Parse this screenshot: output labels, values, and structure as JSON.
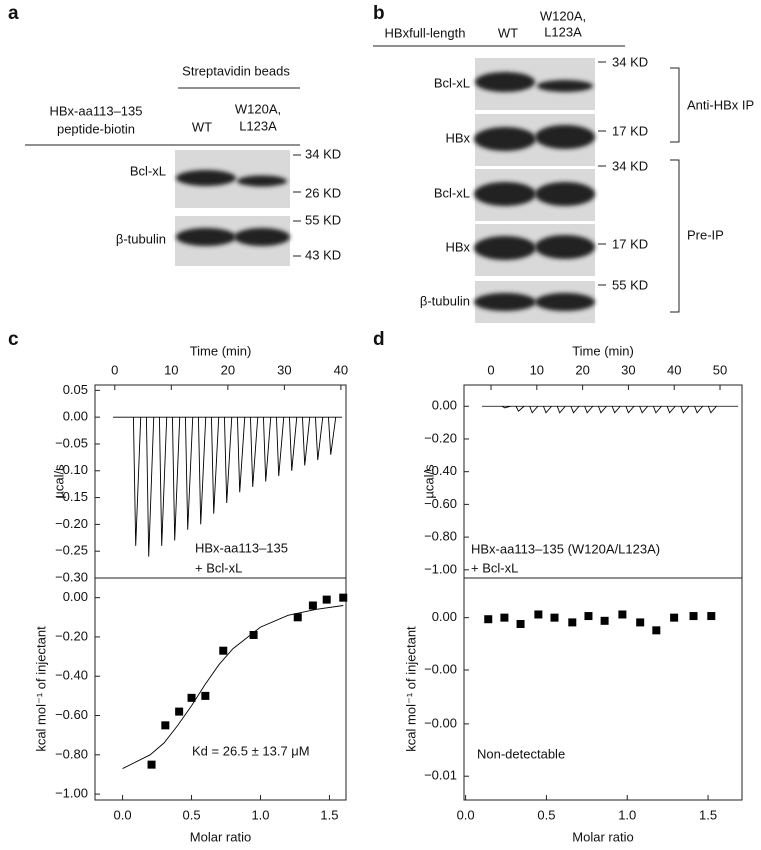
{
  "letters": [
    "a",
    "b",
    "c",
    "d"
  ],
  "panel_a": {
    "header": "Streptavidin beads",
    "sample_label": [
      "HBx-aa113–135",
      "peptide-biotin"
    ],
    "lanes": [
      [
        "WT"
      ],
      [
        "W120A,",
        "L123A"
      ]
    ],
    "rows": [
      {
        "label": "Bcl-xL",
        "markers": [
          "34 KD",
          "26 KD"
        ]
      },
      {
        "label": "β-tubulin",
        "markers": [
          "55 KD",
          "43 KD"
        ]
      }
    ]
  },
  "panel_b": {
    "sample_label": "HBxfull-length",
    "lanes": [
      [
        "WT"
      ],
      [
        "W120A,",
        "L123A"
      ]
    ],
    "rows": [
      "Bcl-xL",
      "HBx",
      "Bcl-xL",
      "HBx",
      "β-tubulin"
    ],
    "markers": [
      "34 KD",
      "17 KD",
      "34 KD",
      "17 KD",
      "55 KD"
    ],
    "groups": [
      "Anti-HBx IP",
      "Pre-IP"
    ]
  },
  "chart_data": [
    {
      "type": "thermogram",
      "xlabel": "Time (min)",
      "ylabel": "µcal/s",
      "color": "#000000",
      "xlim": [
        -3.5,
        40.9
      ],
      "xticks": [
        0,
        10,
        20,
        30,
        40
      ],
      "ylim": [
        -0.3,
        0.06
      ],
      "yticks": [
        0.05,
        {
          "value": 0,
          "label": "0.00"
        },
        {
          "value": -0.05,
          "label": "−0.05"
        },
        {
          "value": -0.1,
          "label": "−0.10"
        },
        {
          "value": -0.15,
          "label": "−0.15"
        },
        {
          "value": -0.2,
          "label": "−0.20"
        },
        {
          "value": -0.25,
          "label": "−0.25"
        },
        {
          "value": -0.3,
          "label": "−0.30"
        }
      ],
      "x": [
        3.7,
        6.0,
        8.3,
        10.6,
        12.9,
        15.2,
        17.5,
        19.8,
        22.1,
        24.4,
        26.7,
        29.0,
        31.3,
        33.6,
        35.9,
        38.2
      ],
      "values": [
        -0.24,
        -0.26,
        -0.24,
        -0.23,
        -0.21,
        -0.2,
        -0.18,
        -0.16,
        -0.14,
        -0.13,
        -0.12,
        -0.11,
        -0.1,
        -0.09,
        -0.08,
        -0.07
      ],
      "annotations": [
        "HBx-aa113–135",
        "+ Bcl-xL"
      ]
    },
    {
      "type": "scatter",
      "xlabel": "Molar ratio",
      "ylabel": "kcal mol⁻¹ of injectant",
      "color": "#000000",
      "xlim": [
        -0.2,
        1.62
      ],
      "xticks": [
        {
          "value": 0,
          "label": "0.0"
        },
        0.5,
        {
          "value": 1,
          "label": "1.0"
        },
        1.5
      ],
      "ylim": [
        -1.03,
        0.1
      ],
      "yticks": [
        {
          "value": 0,
          "label": "0.00"
        },
        {
          "value": -0.2,
          "label": "−0.20"
        },
        {
          "value": -0.4,
          "label": "−0.40"
        },
        {
          "value": -0.6,
          "label": "−0.60"
        },
        {
          "value": -0.8,
          "label": "−0.80"
        },
        {
          "value": -1,
          "label": "−1.00"
        }
      ],
      "x": [
        0.21,
        0.31,
        0.41,
        0.5,
        0.6,
        0.73,
        0.95,
        1.27,
        1.38,
        1.48,
        1.6
      ],
      "values": [
        -0.85,
        -0.65,
        -0.58,
        -0.51,
        -0.5,
        -0.27,
        -0.19,
        -0.1,
        -0.04,
        -0.01,
        0
      ],
      "fit": {
        "x": [
          0,
          0.2,
          0.3,
          0.4,
          0.5,
          0.6,
          0.7,
          0.8,
          1.0,
          1.2,
          1.4,
          1.6
        ],
        "values": [
          -0.87,
          -0.8,
          -0.74,
          -0.65,
          -0.55,
          -0.44,
          -0.34,
          -0.26,
          -0.15,
          -0.09,
          -0.06,
          -0.04
        ]
      },
      "annotations": [
        "Kd = 26.5 ± 13.7 μM"
      ]
    },
    {
      "type": "thermogram",
      "xlabel": "Time (min)",
      "ylabel": "µcal/s",
      "color": "#000000",
      "xlim": [
        -5.9,
        54.8
      ],
      "xticks": [
        0,
        10,
        20,
        30,
        40,
        50
      ],
      "ylim": [
        -1.05,
        0.13
      ],
      "yticks": [
        {
          "value": 0,
          "label": "0.00"
        },
        {
          "value": -0.2,
          "label": "−0.20"
        },
        {
          "value": -0.4,
          "label": "−0.40"
        },
        {
          "value": -0.6,
          "label": "−0.60"
        },
        {
          "value": -0.8,
          "label": "−0.80"
        },
        {
          "value": -1,
          "label": "−1.00"
        }
      ],
      "x": [
        3,
        6,
        9,
        12,
        15,
        18,
        21,
        24,
        27,
        30,
        33,
        36,
        39,
        42,
        45,
        48
      ],
      "values": [
        -0.01,
        -0.03,
        -0.04,
        -0.04,
        -0.04,
        -0.04,
        -0.04,
        -0.04,
        -0.04,
        -0.04,
        -0.04,
        -0.04,
        -0.04,
        -0.04,
        -0.04,
        -0.04
      ],
      "annotations": [
        "HBx-aa113–135 (W120A/L123A)",
        "+ Bcl-xL"
      ]
    },
    {
      "type": "scatter",
      "xlabel": "Molar ratio",
      "ylabel": "kcal mol⁻¹ of injectant",
      "color": "#000000",
      "xlim": [
        -0.01,
        1.71
      ],
      "xticks": [
        {
          "value": 0,
          "label": "0.0"
        },
        0.5,
        {
          "value": 1,
          "label": "1.0"
        },
        1.5
      ],
      "ylim": [
        -0.0115,
        0.0025
      ],
      "yticks": [
        {
          "value": 0,
          "label": "0.00"
        },
        {
          "value": -0.0033,
          "label": "−0.00"
        },
        {
          "value": -0.0067,
          "label": "−0.00"
        },
        {
          "value": -0.01,
          "label": "−0.01"
        }
      ],
      "x": [
        0.14,
        0.24,
        0.34,
        0.45,
        0.55,
        0.66,
        0.76,
        0.86,
        0.97,
        1.08,
        1.18,
        1.29,
        1.41,
        1.52
      ],
      "values": [
        -0.0001,
        0,
        -0.0004,
        0.0002,
        0,
        -0.0003,
        0.0001,
        -0.0002,
        0.0002,
        -0.0003,
        -0.0008,
        0,
        0.0001,
        0.0001
      ],
      "annotations": [
        "Non-detectable"
      ]
    }
  ]
}
